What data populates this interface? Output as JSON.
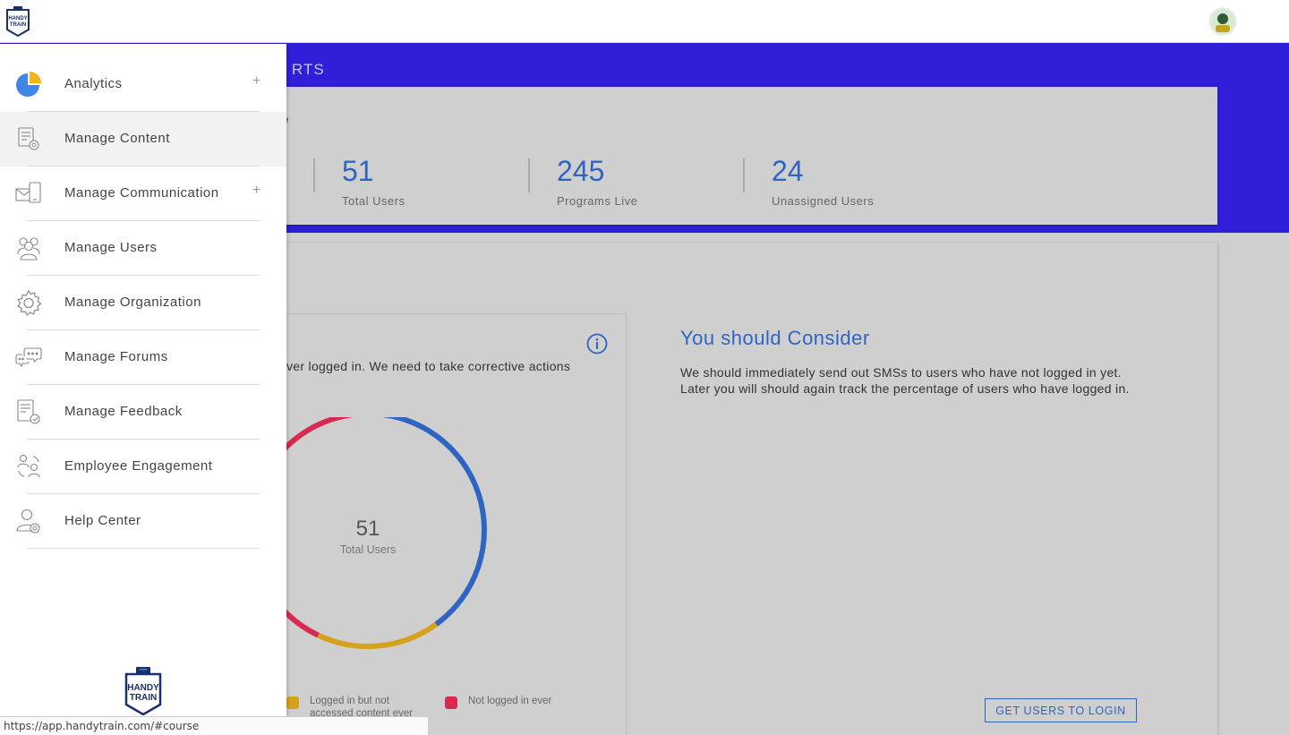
{
  "brand": {
    "logo_line1": "HANDY",
    "logo_line2": "TRAIN"
  },
  "header": {
    "tab_label_partial": "RTS"
  },
  "stats": {
    "comma": ",",
    "items": [
      {
        "value": "51",
        "label": "Total Users"
      },
      {
        "value": "245",
        "label": "Programs Live"
      },
      {
        "value": "24",
        "label": "Unassigned Users"
      }
    ]
  },
  "chart_panel": {
    "description_partial": "ver logged in. We need to take corrective actions",
    "center_value": "51",
    "center_label": "Total Users",
    "legend": [
      {
        "label_line1": "Logged in but not",
        "label_line2": "accessed content ever",
        "color": "#d6a21e"
      },
      {
        "label_line1": "Not logged in ever",
        "label_line2": "",
        "color": "#d8294f"
      }
    ]
  },
  "chart_data": {
    "type": "pie",
    "title": "",
    "center_text": "51",
    "center_subtext": "Total Users",
    "slices": [
      {
        "label": "",
        "value": 0.4,
        "color": "#2f65c2"
      },
      {
        "label": "Logged in but not accessed content ever",
        "value": 0.17,
        "color": "#d6a21e"
      },
      {
        "label": "Not logged in ever",
        "value": 0.43,
        "color": "#d8294f"
      }
    ],
    "legend_position": "bottom"
  },
  "consider": {
    "title": "You should Consider",
    "text": "We should immediately send out SMSs to users who have not logged in yet. Later you will should again track the percentage of users who have logged in.",
    "cta_label": "GET USERS TO LOGIN"
  },
  "sidebar": {
    "items": [
      {
        "label": "Analytics",
        "icon": "pie-chart-icon",
        "expandable": true,
        "plus": "+"
      },
      {
        "label": "Manage Content",
        "icon": "content-settings-icon",
        "expandable": false,
        "plus": ""
      },
      {
        "label": "Manage Communication",
        "icon": "communication-icon",
        "expandable": true,
        "plus": "+"
      },
      {
        "label": "Manage Users",
        "icon": "users-icon",
        "expandable": false,
        "plus": ""
      },
      {
        "label": "Manage Organization",
        "icon": "gear-icon",
        "expandable": false,
        "plus": ""
      },
      {
        "label": "Manage Forums",
        "icon": "forum-chat-icon",
        "expandable": false,
        "plus": ""
      },
      {
        "label": "Manage Feedback",
        "icon": "feedback-icon",
        "expandable": false,
        "plus": ""
      },
      {
        "label": "Employee Engagement",
        "icon": "engagement-icon",
        "expandable": false,
        "plus": ""
      },
      {
        "label": "Help Center",
        "icon": "help-center-icon",
        "expandable": false,
        "plus": ""
      }
    ]
  },
  "status_bar": {
    "url": "https://app.handytrain.com/#course"
  },
  "colors": {
    "accent": "#2f65c2",
    "band": "#2e1fd8"
  }
}
